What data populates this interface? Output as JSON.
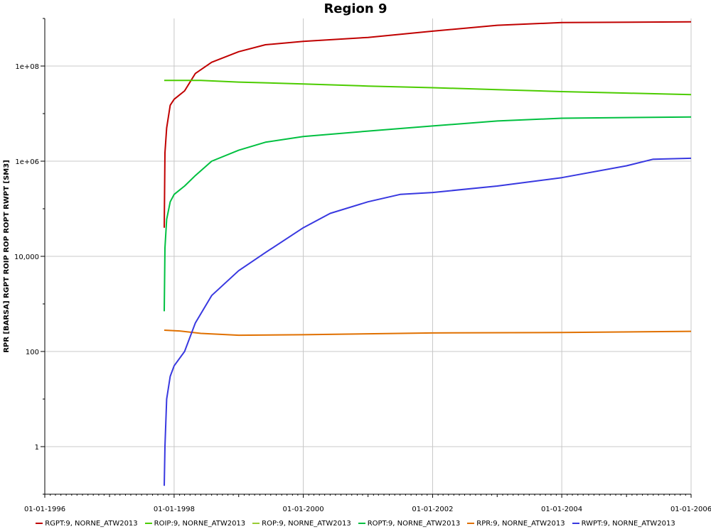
{
  "chart_data": {
    "type": "line",
    "title": "Region 9",
    "ylabel": "RPR [BARSA] RGPT ROIP ROP ROPT RWPT [SM3]",
    "xlabel": "",
    "y_scale": "log",
    "ylim": [
      0.1,
      1000000000
    ],
    "xlim": [
      "1996-01-01",
      "2006-01-01"
    ],
    "x_ticks": [
      "01-01-1996",
      "01-01-1998",
      "01-01-2000",
      "01-01-2002",
      "01-01-2004",
      "01-01-2006"
    ],
    "y_ticks": [
      {
        "value": 1,
        "label": "1"
      },
      {
        "value": 100,
        "label": "100"
      },
      {
        "value": 10000,
        "label": "10,000"
      },
      {
        "value": 1000000,
        "label": "1e+06"
      },
      {
        "value": 100000000,
        "label": "1e+08"
      }
    ],
    "grid": true,
    "legend_position": "bottom",
    "series": [
      {
        "name": "RGPT:9, NORNE_ATW2013",
        "color": "#c00000",
        "x": [
          "1997-11-06",
          "1997-11-10",
          "1997-11-20",
          "1997-12-10",
          "1998-01-01",
          "1998-03-01",
          "1998-05-01",
          "1998-08-01",
          "1999-01-01",
          "1999-06-01",
          "2000-01-01",
          "2001-01-01",
          "2002-01-01",
          "2003-01-01",
          "2004-01-01",
          "2006-01-01"
        ],
        "y": [
          40000,
          1500000,
          5000000,
          15000000,
          20000000,
          30000000,
          70000000,
          120000000,
          200000000,
          280000000,
          330000000,
          400000000,
          540000000,
          720000000,
          820000000,
          850000000
        ]
      },
      {
        "name": "ROIP:9, NORNE_ATW2013",
        "color": "#4ccc00",
        "x": [
          "1997-11-06",
          "1998-06-01",
          "1999-01-01",
          "2000-01-01",
          "2001-01-01",
          "2002-01-01",
          "2003-01-01",
          "2004-01-01",
          "2005-01-01",
          "2006-01-01"
        ],
        "y": [
          50000000,
          50000000,
          46000000,
          42000000,
          38000000,
          35000000,
          32000000,
          29000000,
          27000000,
          25000000
        ]
      },
      {
        "name": "ROP:9, NORNE_ATW2013",
        "color": "#99cc33",
        "x": [],
        "y": []
      },
      {
        "name": "ROPT:9, NORNE_ATW2013",
        "color": "#00c040",
        "x": [
          "1997-11-06",
          "1997-11-10",
          "1997-11-20",
          "1997-12-10",
          "1998-01-01",
          "1998-03-01",
          "1998-05-01",
          "1998-08-01",
          "1999-01-01",
          "1999-06-01",
          "2000-01-01",
          "2001-01-01",
          "2002-01-01",
          "2003-01-01",
          "2004-01-01",
          "2006-01-01"
        ],
        "y": [
          700,
          15000,
          60000,
          140000,
          200000,
          300000,
          500000,
          1000000,
          1700000,
          2500000,
          3300000,
          4300000,
          5500000,
          7000000,
          8000000,
          8500000
        ]
      },
      {
        "name": "RPR:9, NORNE_ATW2013",
        "color": "#e07000",
        "x": [
          "1997-11-06",
          "1998-02-01",
          "1998-06-01",
          "1999-01-01",
          "2000-01-01",
          "2002-01-01",
          "2004-01-01",
          "2006-01-01"
        ],
        "y": [
          280,
          270,
          240,
          220,
          225,
          245,
          250,
          265
        ]
      },
      {
        "name": "RWPT:9, NORNE_ATW2013",
        "color": "#3838e0",
        "x": [
          "1997-11-06",
          "1997-11-10",
          "1997-11-20",
          "1997-12-10",
          "1998-01-01",
          "1998-03-01",
          "1998-05-01",
          "1998-08-01",
          "1999-01-01",
          "1999-06-01",
          "2000-01-01",
          "2000-06-01",
          "2001-01-01",
          "2001-07-01",
          "2002-01-01",
          "2003-01-01",
          "2004-01-01",
          "2005-01-01",
          "2005-06-01",
          "2006-01-01"
        ],
        "y": [
          0.15,
          1,
          10,
          30,
          50,
          100,
          400,
          1500,
          5000,
          12000,
          40000,
          80000,
          140000,
          200000,
          220000,
          300000,
          450000,
          800000,
          1100000,
          1150000
        ]
      }
    ]
  }
}
